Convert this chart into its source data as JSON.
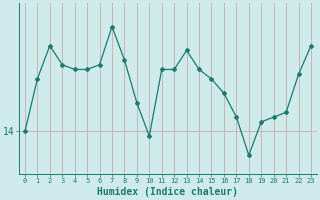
{
  "x": [
    0,
    1,
    2,
    3,
    4,
    5,
    6,
    7,
    8,
    9,
    10,
    11,
    12,
    13,
    14,
    15,
    16,
    17,
    18,
    19,
    20,
    21,
    22,
    23
  ],
  "y": [
    14.0,
    14.55,
    14.9,
    14.7,
    14.65,
    14.65,
    14.7,
    15.1,
    14.75,
    14.3,
    13.95,
    14.65,
    14.65,
    14.85,
    14.65,
    14.55,
    14.4,
    14.15,
    13.75,
    14.1,
    14.15,
    14.2,
    14.6,
    14.9
  ],
  "line_color": "#1a7a6e",
  "marker_color": "#1a7a6e",
  "bg_color": "#ceeaea",
  "grid_color_v": "#c4a0a0",
  "grid_color_h": "#c4a0a0",
  "xlabel": "Humidex (Indice chaleur)",
  "ytick_label": "14",
  "ytick_value": 14.0,
  "xlim_min": -0.5,
  "xlim_max": 23.5,
  "ylim_min": 13.55,
  "ylim_max": 15.35
}
